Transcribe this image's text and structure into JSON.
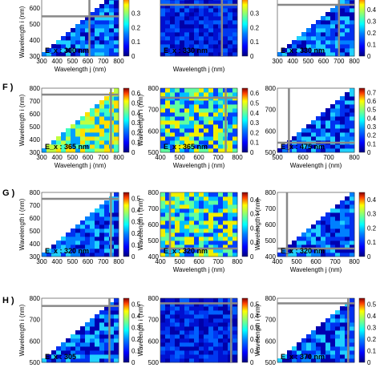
{
  "figure": {
    "rows": [
      {
        "label": "",
        "visible_from_top": false
      },
      {
        "label": "F )"
      },
      {
        "label": "G )"
      },
      {
        "label": "H )"
      }
    ],
    "axis_title_y": "Wavelength i (nm)",
    "axis_title_x": "Wavelength j (nm)"
  },
  "chart_data": [
    {
      "id": "r0c0",
      "type": "heatmap",
      "shape": "lower-triangle",
      "annotation": "E_x : 300 nm",
      "x_ticks": [
        300,
        400,
        500,
        600,
        700,
        800
      ],
      "y_ticks": [
        300,
        400,
        500,
        600,
        700
      ],
      "xlabel": "Wavelength j (nm)",
      "ylabel": "Wavelength i (nm)",
      "colorbar_ticks": [
        0,
        0.1,
        0.2,
        0.3,
        0.4
      ],
      "colorbar_max": 0.45,
      "crosshair_nm": 610,
      "palette": "blue-cyan"
    },
    {
      "id": "r0c1",
      "type": "heatmap",
      "shape": "square",
      "annotation": "E_x : 330 nm",
      "x_ticks": [],
      "y_ticks": [],
      "xlabel": "Wavelength j (nm)",
      "ylabel": "",
      "colorbar_ticks": [
        0,
        0.1,
        0.2,
        0.3,
        0.4
      ],
      "colorbar_max": 0.45,
      "crosshair_nm": 700,
      "palette": "blue"
    },
    {
      "id": "r0c2",
      "type": "heatmap",
      "shape": "lower-triangle",
      "annotation": "E_x : 330 nm",
      "x_ticks": [
        300,
        400,
        500,
        600,
        700,
        800
      ],
      "y_ticks": [],
      "xlabel": "",
      "ylabel": "",
      "colorbar_ticks": [
        0,
        0.1,
        0.2,
        0.3,
        0.4,
        0.5
      ],
      "colorbar_max": 0.55,
      "crosshair_nm": 700,
      "palette": "blue-cyan"
    },
    {
      "id": "r1c0",
      "type": "heatmap",
      "shape": "lower-triangle",
      "annotation": "E_x : 365 nm",
      "x_ticks": [
        300,
        400,
        500,
        600,
        700,
        800
      ],
      "y_ticks": [
        300,
        400,
        500,
        600,
        700,
        800
      ],
      "xlabel": "Wavelength j (nm)",
      "ylabel": "Wavelength i (nm)",
      "colorbar_ticks": [
        0,
        0.1,
        0.2,
        0.3,
        0.4,
        0.5,
        0.6
      ],
      "colorbar_max": 0.65,
      "crosshair_nm": 750,
      "palette": "yellow"
    },
    {
      "id": "r1c1",
      "type": "heatmap",
      "shape": "square",
      "annotation": "E_x : 365 nm",
      "x_ticks": [
        400,
        500,
        600,
        700,
        800
      ],
      "y_ticks": [
        500,
        600,
        700,
        800
      ],
      "xlabel": "Wavelength j (nm)",
      "ylabel": "Wavelength i (nm)",
      "colorbar_ticks": [
        0,
        0.1,
        0.2,
        0.3,
        0.4,
        0.5,
        0.6
      ],
      "colorbar_max": 0.65,
      "crosshair_nm": 740,
      "palette": "cyan-yellow"
    },
    {
      "id": "r1c2",
      "type": "heatmap",
      "shape": "lower-triangle",
      "annotation": "E_x : 475 nm",
      "x_ticks": [
        500,
        600,
        700,
        800
      ],
      "y_ticks": [
        500,
        600,
        700,
        800
      ],
      "xlabel": "Wavelength j (nm)",
      "ylabel": "",
      "colorbar_ticks": [
        0,
        0.1,
        0.2,
        0.3,
        0.4,
        0.5,
        0.6,
        0.7
      ],
      "colorbar_max": 0.75,
      "crosshair_nm": 545,
      "palette": "blue-cyan"
    },
    {
      "id": "r2c0",
      "type": "heatmap",
      "shape": "lower-triangle",
      "annotation": "E_x : 320 nm",
      "x_ticks": [
        300,
        400,
        500,
        600,
        700,
        800
      ],
      "y_ticks": [
        300,
        400,
        500,
        600,
        700,
        800
      ],
      "xlabel": "",
      "ylabel": "Wavelength i (nm)",
      "colorbar_ticks": [
        0,
        0.1,
        0.2,
        0.3,
        0.4,
        0.5
      ],
      "colorbar_max": 0.55,
      "crosshair_nm": 750,
      "palette": "blue-cyan"
    },
    {
      "id": "r2c1",
      "type": "heatmap",
      "shape": "square",
      "annotation": "E_x : 320 nm",
      "x_ticks": [
        400,
        500,
        600,
        700,
        800
      ],
      "y_ticks": [
        400,
        500,
        600,
        700,
        800
      ],
      "xlabel": "Wavelength j (nm)",
      "ylabel": "Wavelength i (nm)",
      "colorbar_ticks": [
        0,
        0.1,
        0.2,
        0.3,
        0.4
      ],
      "colorbar_max": 0.45,
      "crosshair_nm": 450,
      "palette": "cyan-yellow"
    },
    {
      "id": "r2c2",
      "type": "heatmap",
      "shape": "lower-triangle",
      "annotation": "E_x : 320 nm",
      "x_ticks": [
        400,
        500,
        600,
        700,
        800
      ],
      "y_ticks": [
        400,
        500,
        600,
        700,
        800
      ],
      "xlabel": "Wavelength j (nm)",
      "ylabel": "Wavelength i (nm)",
      "colorbar_ticks": [
        0,
        0.1,
        0.2,
        0.3,
        0.4
      ],
      "colorbar_max": 0.45,
      "crosshair_nm": 450,
      "palette": "blue-cyan"
    },
    {
      "id": "r3c0",
      "type": "heatmap",
      "shape": "lower-triangle",
      "annotation": "E_x : 305",
      "x_ticks": [],
      "y_ticks": [
        500,
        600,
        700,
        800
      ],
      "xlabel": "",
      "ylabel": "Wavelength i (nm)",
      "colorbar_ticks": [
        0,
        0.1,
        0.2,
        0.3,
        0.4,
        0.5
      ],
      "colorbar_max": 0.55,
      "crosshair_nm": 740,
      "palette": "blue-cyan"
    },
    {
      "id": "r3c1",
      "type": "heatmap",
      "shape": "square",
      "annotation": "",
      "x_ticks": [],
      "y_ticks": [
        500,
        600,
        700,
        800
      ],
      "xlabel": "",
      "ylabel": "Wavelength i (nm)",
      "colorbar_ticks": [
        0,
        0.1,
        0.2,
        0.3,
        0.4,
        0.5
      ],
      "colorbar_max": 0.55,
      "crosshair_nm": 760,
      "palette": "blue"
    },
    {
      "id": "r3c2",
      "type": "heatmap",
      "shape": "lower-triangle",
      "annotation": "E_x : 370 nm",
      "x_ticks": [],
      "y_ticks": [
        500,
        600,
        700,
        800
      ],
      "xlabel": "",
      "ylabel": "Wavelength i (nm)",
      "colorbar_ticks": [
        0,
        0.1,
        0.2,
        0.3,
        0.4,
        0.5
      ],
      "colorbar_max": 0.55,
      "crosshair_nm": 760,
      "palette": "blue-cyan"
    }
  ]
}
